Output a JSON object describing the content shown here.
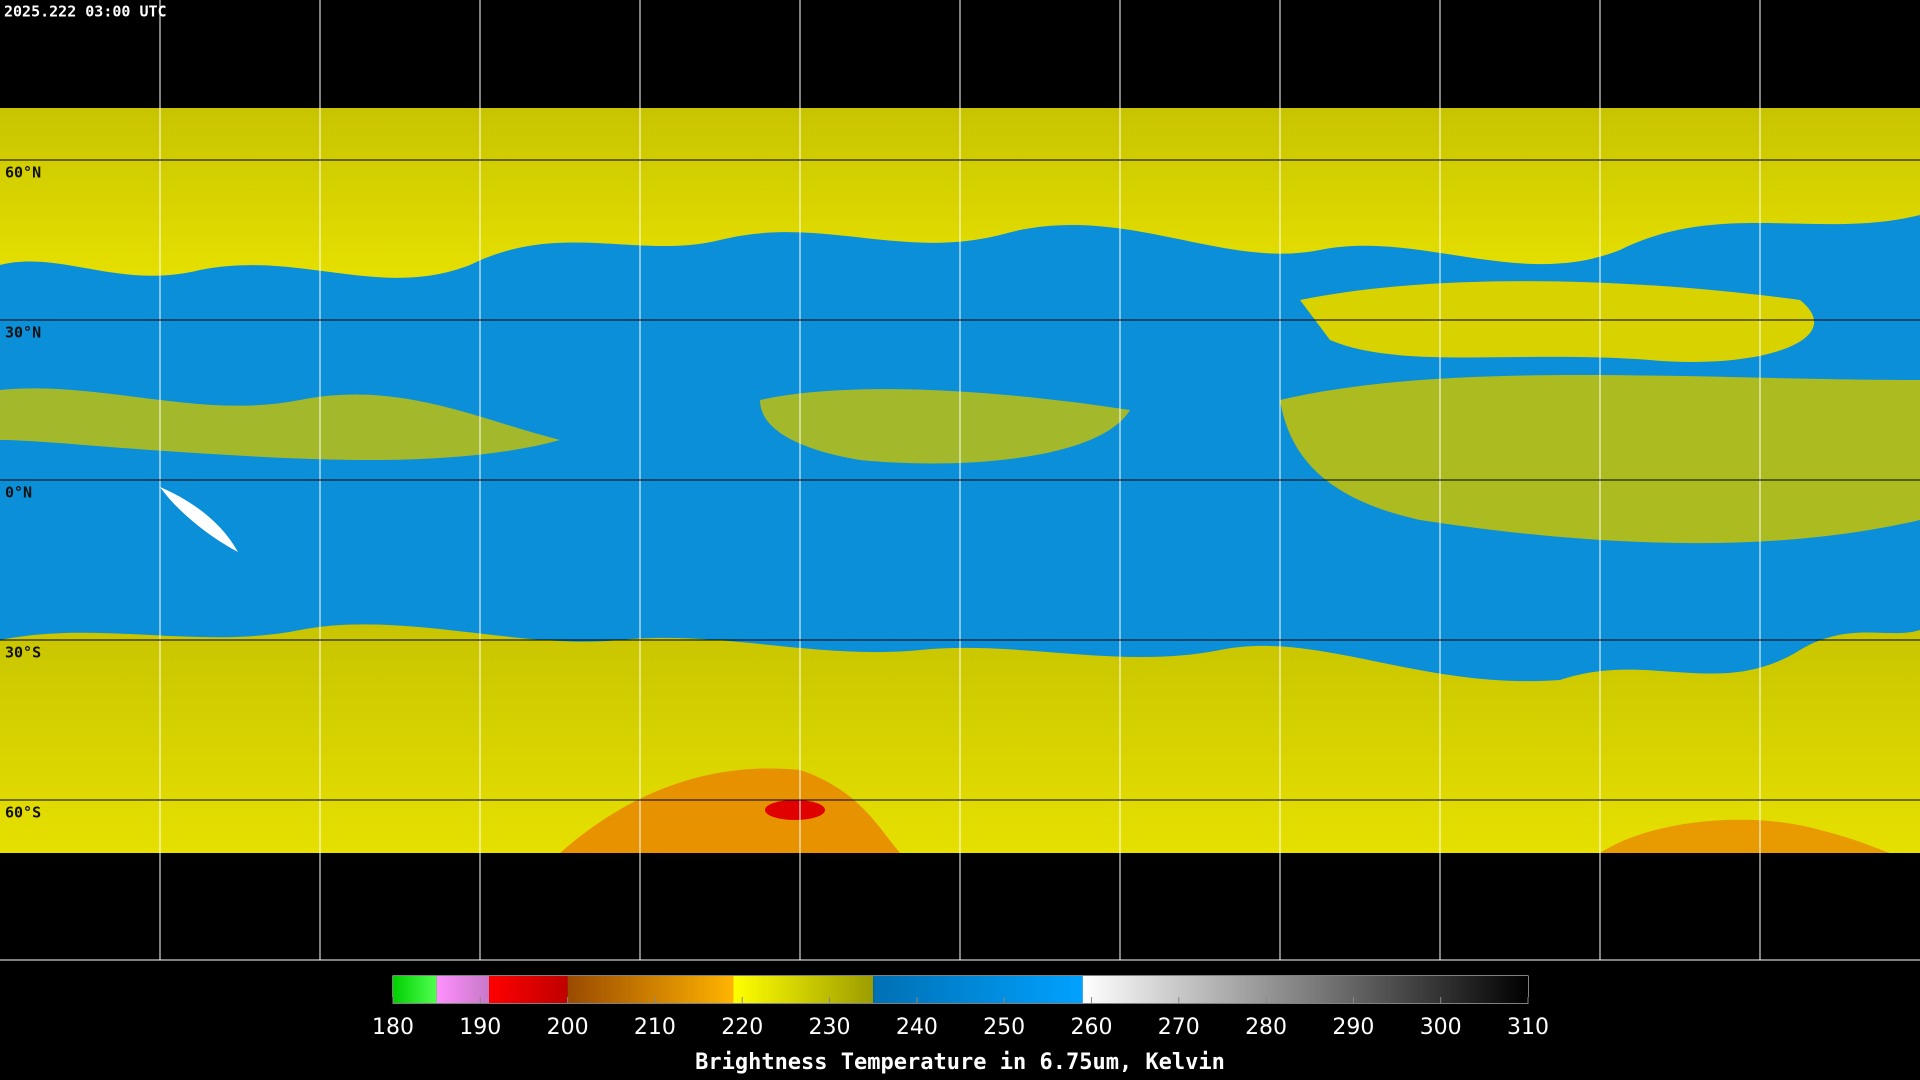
{
  "timestamp": "2025.222 03:00 UTC",
  "lat_labels": [
    "60°N",
    "30°N",
    "0°N",
    "30°S",
    "60°S"
  ],
  "colorbar": {
    "title": "Brightness Temperature in 6.75um, Kelvin",
    "range": [
      180,
      310
    ],
    "ticks": [
      180,
      190,
      200,
      210,
      220,
      230,
      240,
      250,
      260,
      270,
      280,
      290,
      300,
      310
    ],
    "segments": [
      {
        "from": 180,
        "to": 185,
        "colors": [
          "#00d000",
          "#50ff50"
        ]
      },
      {
        "from": 185,
        "to": 191,
        "colors": [
          "#ff90ff",
          "#c878c8"
        ]
      },
      {
        "from": 191,
        "to": 200,
        "colors": [
          "#ff0000",
          "#c00000"
        ]
      },
      {
        "from": 200,
        "to": 219,
        "colors": [
          "#9a4a00",
          "#ffb400"
        ]
      },
      {
        "from": 219,
        "to": 235,
        "colors": [
          "#ffff00",
          "#9c9c00"
        ]
      },
      {
        "from": 235,
        "to": 259,
        "colors": [
          "#0070b4",
          "#00a2ff"
        ]
      },
      {
        "from": 259,
        "to": 310,
        "colors": [
          "#ffffff",
          "#000000"
        ]
      }
    ]
  }
}
